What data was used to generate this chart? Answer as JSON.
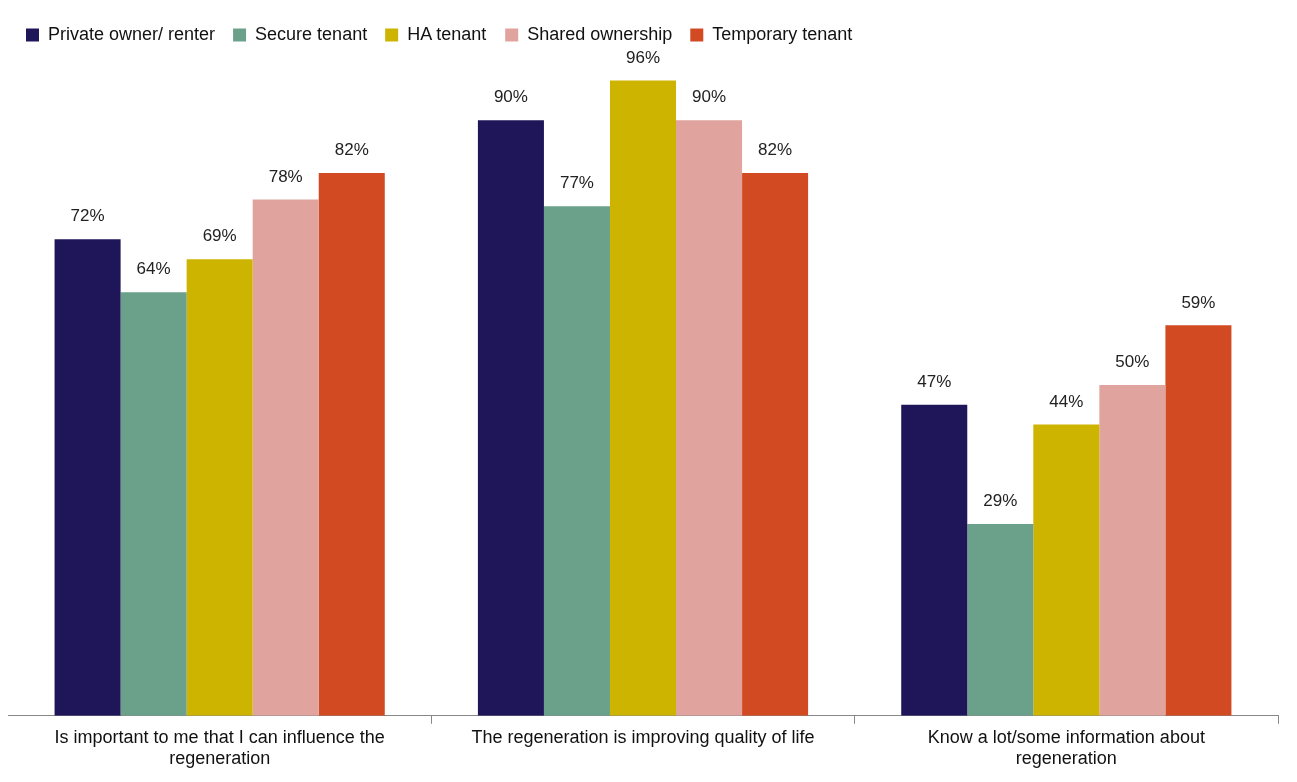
{
  "chart_data": {
    "type": "bar",
    "categories": [
      "Is important to me that I can influence the regeneration",
      "The regeneration is improving quality of life",
      "Know a lot/some information about regeneration"
    ],
    "series": [
      {
        "name": "Private owner/ renter",
        "color": "#1f1659",
        "values": [
          72,
          90,
          47
        ],
        "value_labels": [
          "72%",
          "90%",
          "47%"
        ]
      },
      {
        "name": "Secure tenant",
        "color": "#6ba08a",
        "values": [
          64,
          77,
          29
        ],
        "value_labels": [
          "64%",
          "77%",
          "29%"
        ]
      },
      {
        "name": "HA tenant",
        "color": "#cdb400",
        "values": [
          69,
          96,
          44
        ],
        "value_labels": [
          "69%",
          "96%",
          "44%"
        ]
      },
      {
        "name": "Shared ownership",
        "color": "#e0a39e",
        "values": [
          78,
          90,
          50
        ],
        "value_labels": [
          "78%",
          "90%",
          "50%"
        ]
      },
      {
        "name": "Temporary tenant",
        "color": "#d24a22",
        "values": [
          82,
          82,
          59
        ],
        "value_labels": [
          "82%",
          "82%",
          "59%"
        ]
      }
    ],
    "legend": "top left",
    "grid": false
  }
}
